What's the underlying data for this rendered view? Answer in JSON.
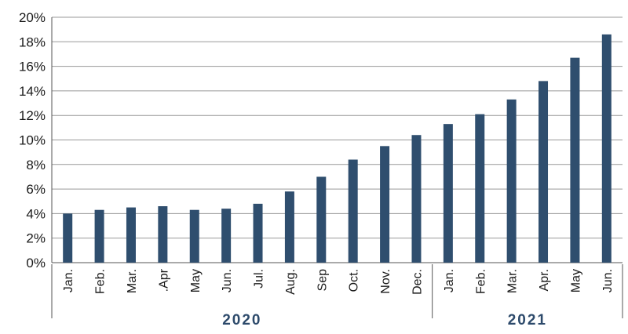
{
  "chart_data": {
    "type": "bar",
    "categories": [
      "Jan.",
      "Feb.",
      "Mar.",
      ".Apr",
      "May",
      "Jun.",
      "Jul.",
      "Aug.",
      "Sep",
      "Oct.",
      "Nov.",
      "Dec.",
      "Jan.",
      "Feb.",
      "Mar.",
      "Apr.",
      "May",
      "Jun."
    ],
    "values": [
      4.0,
      4.3,
      4.5,
      4.6,
      4.3,
      4.4,
      4.8,
      5.8,
      7.0,
      8.4,
      9.5,
      10.4,
      11.3,
      12.1,
      13.3,
      14.8,
      16.7,
      18.6
    ],
    "groups": [
      {
        "label": "2020",
        "start": 0,
        "end": 11
      },
      {
        "label": "2021",
        "start": 12,
        "end": 17
      }
    ],
    "ylim": [
      0,
      20
    ],
    "yticks": [
      0,
      2,
      4,
      6,
      8,
      10,
      12,
      14,
      16,
      18,
      20
    ],
    "ytick_labels": [
      "0%",
      "2%",
      "4%",
      "6%",
      "8%",
      "10%",
      "12%",
      "14%",
      "16%",
      "18%",
      "20%"
    ],
    "grid": true,
    "title": "",
    "xlabel": "",
    "ylabel": "",
    "bar_color": "#2f4e6e",
    "grid_color": "#999999",
    "group_label_color": "#2d4a6b"
  }
}
